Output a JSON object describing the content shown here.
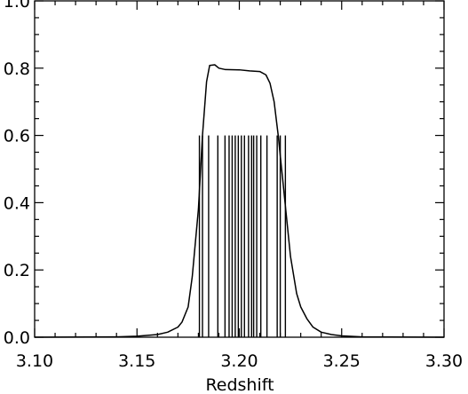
{
  "chart_data": {
    "type": "line",
    "title": "",
    "xlabel": "Redshift",
    "ylabel": "",
    "xlim": [
      3.1,
      3.3
    ],
    "ylim": [
      0.0,
      1.0
    ],
    "grid": false,
    "x_ticks": [
      "3.10",
      "3.15",
      "3.20",
      "3.25",
      "3.30"
    ],
    "y_ticks": [
      "0.0",
      "0.2",
      "0.4",
      "0.6",
      "0.8",
      "1.0"
    ],
    "series": [
      {
        "kind": "curve",
        "color": "#000000",
        "x": [
          3.1,
          3.14,
          3.15,
          3.16,
          3.165,
          3.17,
          3.172,
          3.175,
          3.177,
          3.18,
          3.182,
          3.184,
          3.1855,
          3.188,
          3.19,
          3.193,
          3.2,
          3.205,
          3.21,
          3.213,
          3.215,
          3.217,
          3.219,
          3.221,
          3.223,
          3.225,
          3.228,
          3.23,
          3.233,
          3.236,
          3.24,
          3.245,
          3.25,
          3.26,
          3.3
        ],
        "y": [
          0.0,
          0.001,
          0.003,
          0.008,
          0.015,
          0.03,
          0.045,
          0.09,
          0.18,
          0.38,
          0.6,
          0.76,
          0.808,
          0.81,
          0.8,
          0.796,
          0.795,
          0.792,
          0.79,
          0.78,
          0.755,
          0.7,
          0.6,
          0.48,
          0.36,
          0.24,
          0.13,
          0.09,
          0.055,
          0.03,
          0.015,
          0.008,
          0.004,
          0.001,
          0.0
        ]
      },
      {
        "kind": "vertical-lines",
        "color": "#000000",
        "y_top": 0.6,
        "x": [
          3.1805,
          3.182,
          3.185,
          3.1895,
          3.193,
          3.195,
          3.1965,
          3.198,
          3.1995,
          3.201,
          3.2025,
          3.2045,
          3.206,
          3.207,
          3.2085,
          3.2105,
          3.2135,
          3.2185,
          3.22,
          3.2225
        ]
      }
    ]
  }
}
